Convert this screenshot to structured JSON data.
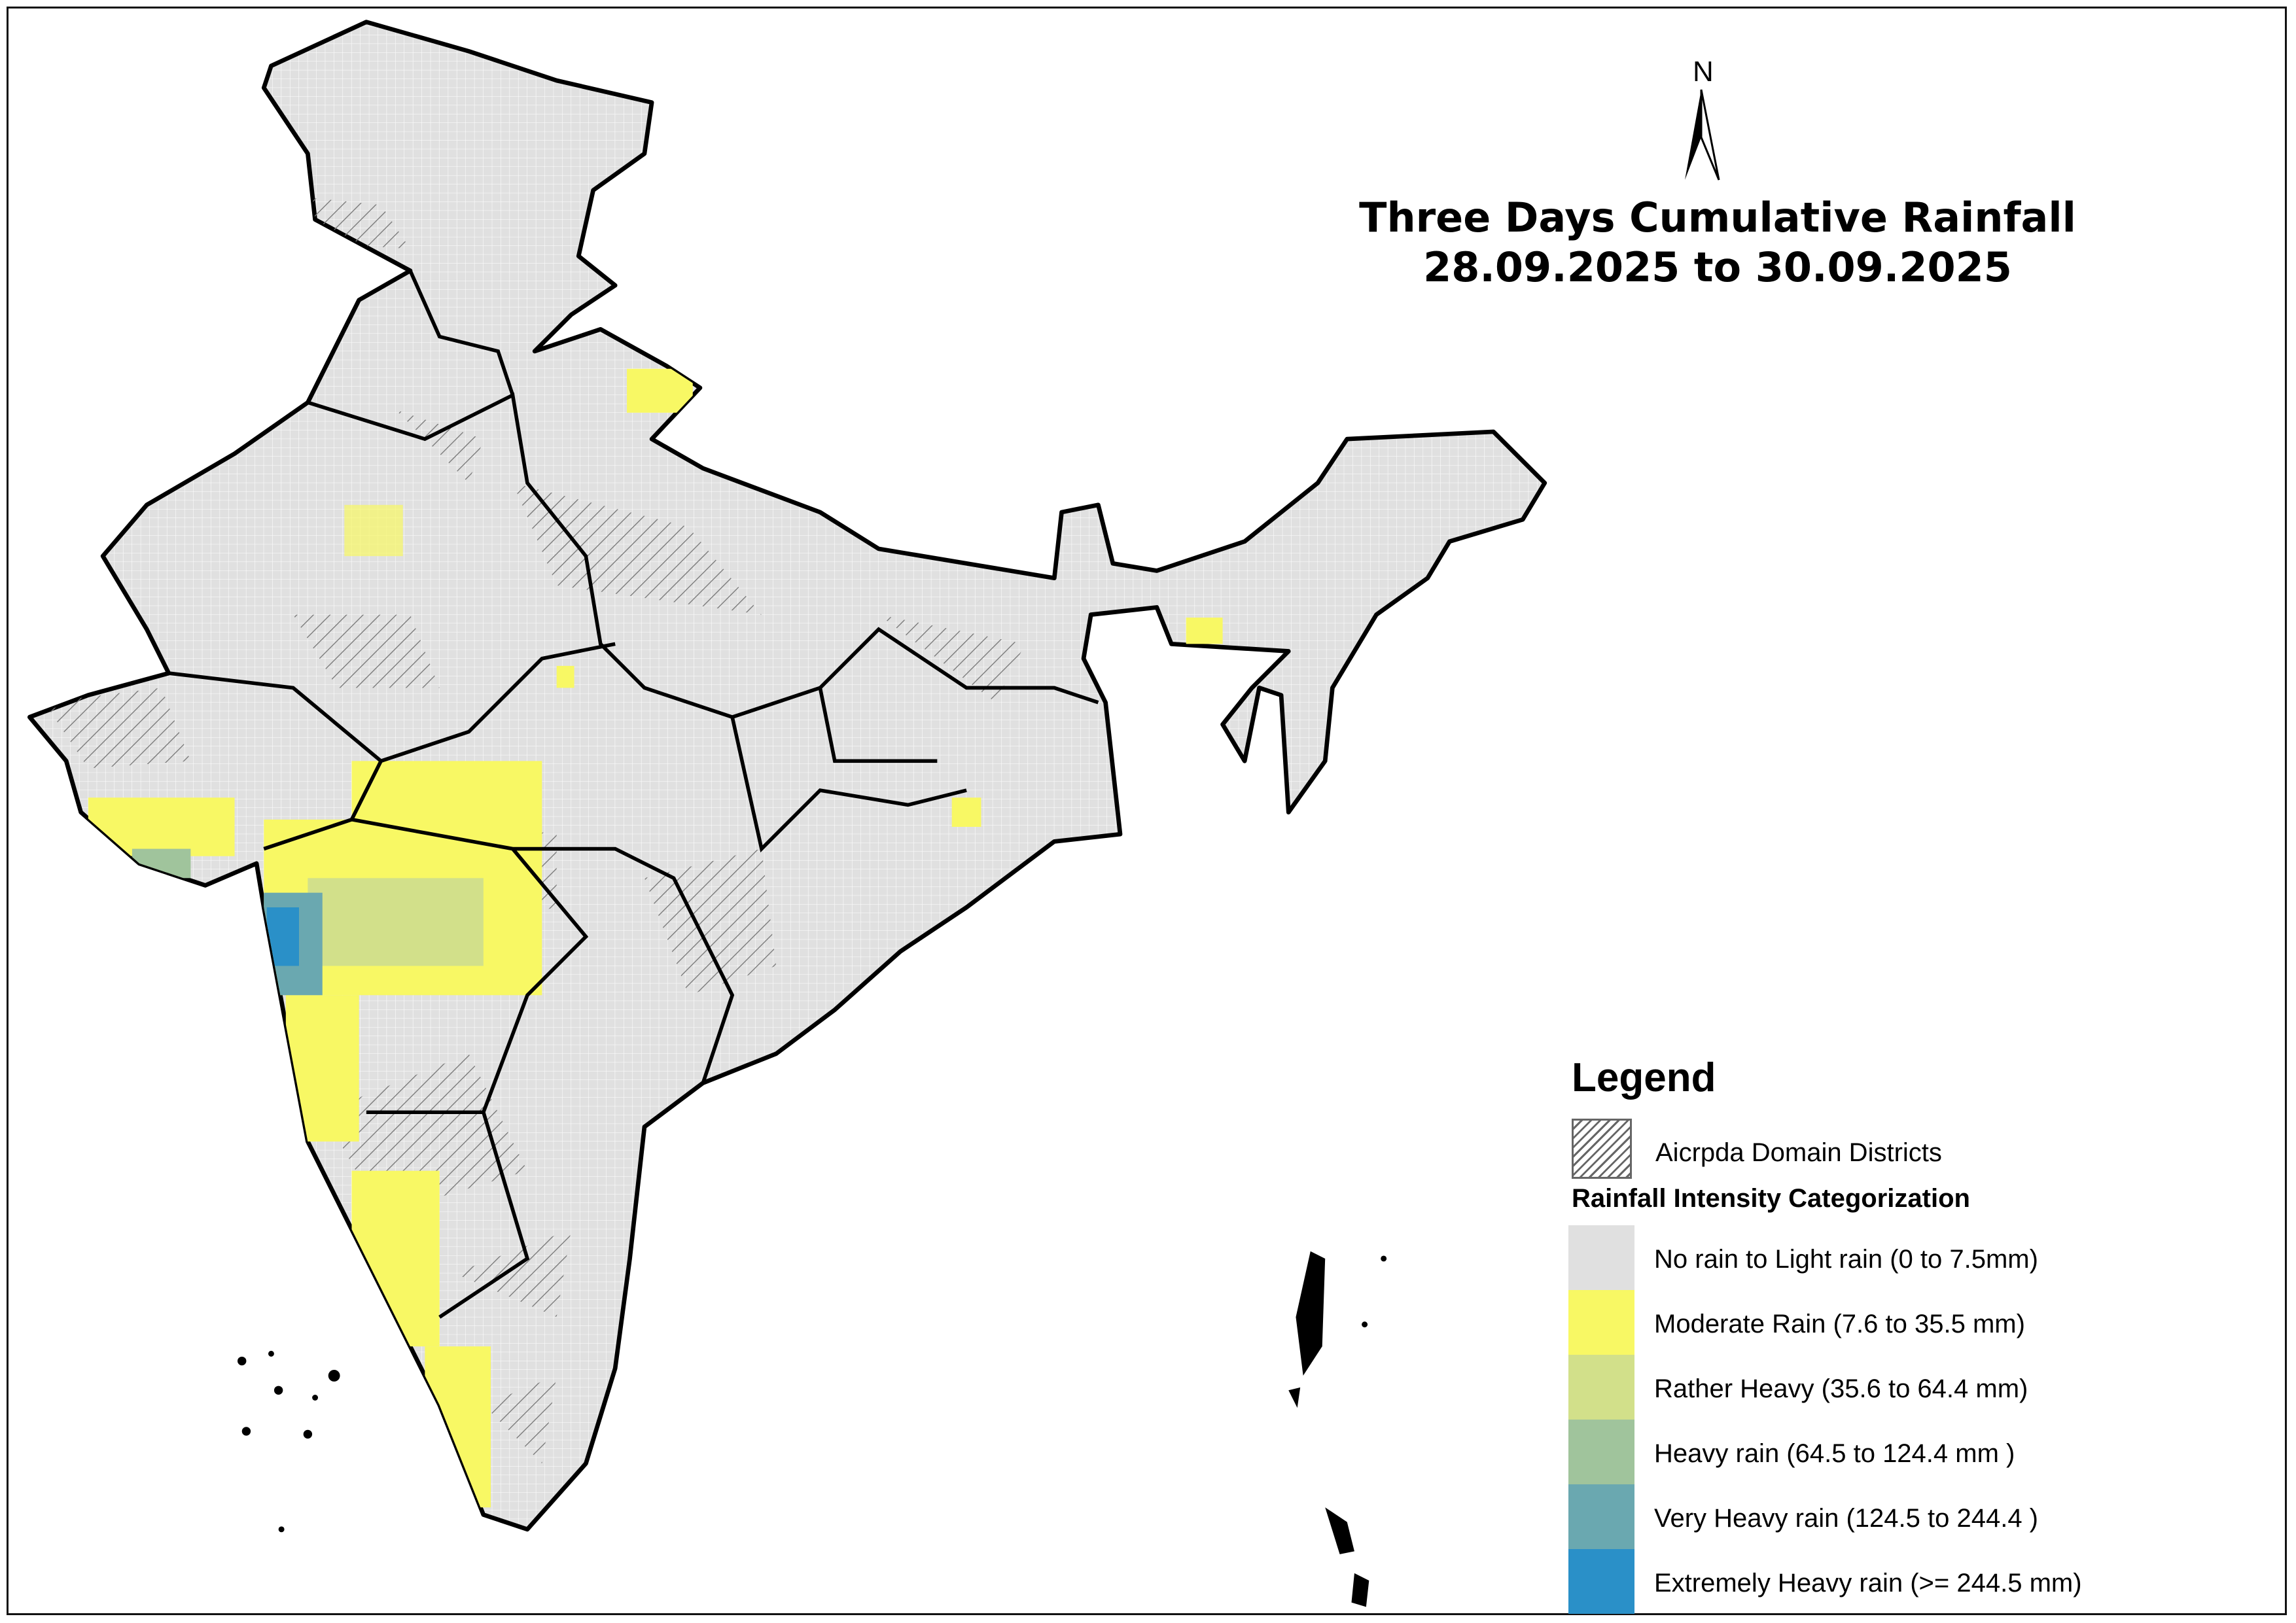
{
  "title": {
    "line1": "Three Days Cumulative Rainfall",
    "line2": "28.09.2025 to 30.09.2025"
  },
  "north_arrow": {
    "label": "N",
    "icon": "north-arrow-icon"
  },
  "legend": {
    "heading": "Legend",
    "domain_label": "Aicrpda Domain Districts",
    "category_heading": "Rainfall Intensity Categorization",
    "categories": [
      {
        "label": "No rain to Light rain (0 to 7.5mm)",
        "color": "#e0e0e0"
      },
      {
        "label": "Moderate Rain (7.6 to 35.5 mm)",
        "color": "#f8f864"
      },
      {
        "label": "Rather Heavy (35.6 to 64.4 mm)",
        "color": "#d2e08a"
      },
      {
        "label": "Heavy rain (64.5 to 124.4 mm )",
        "color": "#a0c49c"
      },
      {
        "label": "Very Heavy rain (124.5 to 244.4 )",
        "color": "#6aa8b0"
      },
      {
        "label": "Extremely Heavy rain  (>= 244.5 mm)",
        "color": "#2a90c8"
      }
    ]
  }
}
